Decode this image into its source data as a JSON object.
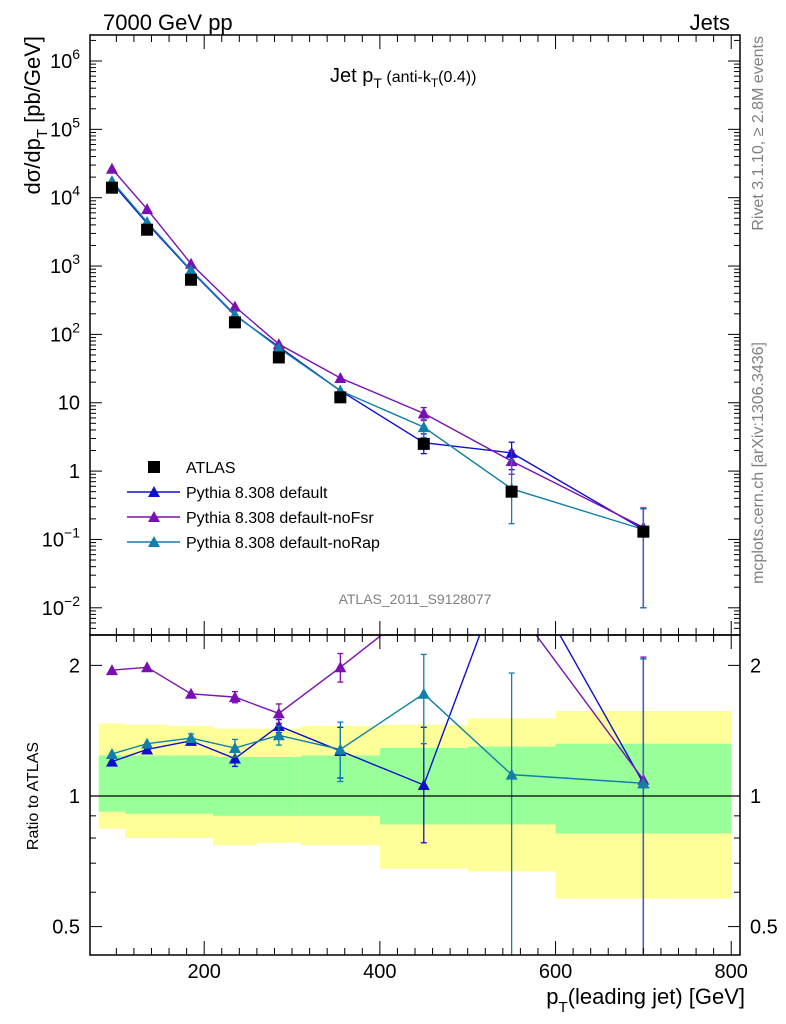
{
  "header": {
    "left": "7000 GeV pp",
    "right": "Jets"
  },
  "side": {
    "top": "Rivet 3.1.10, ≥ 2.8M events",
    "bottom": "mcplots.cern.ch [arXiv:1306.3436]"
  },
  "chart_data": [
    {
      "type": "line",
      "title_main": "Jet p",
      "title_sub": "T",
      "title_tail": " (anti-k",
      "title_sub2": "T",
      "title_end": "(0.4))",
      "watermark": "ATLAS_2011_S9128077",
      "ylabel_main": "dσ/dp",
      "ylabel_sub": "T",
      "ylabel_end": " [pb/GeV]",
      "yscale": "log",
      "xlim": [
        70,
        810
      ],
      "ylim": [
        0.004,
        2400000
      ],
      "ytick_labels": [
        {
          "v": 1000000,
          "base": "10",
          "exp": "6"
        },
        {
          "v": 100000,
          "base": "10",
          "exp": "5"
        },
        {
          "v": 10000,
          "base": "10",
          "exp": "4"
        },
        {
          "v": 1000,
          "base": "10",
          "exp": "3"
        },
        {
          "v": 100,
          "base": "10",
          "exp": "2"
        },
        {
          "v": 10,
          "base": "10",
          "exp": ""
        },
        {
          "v": 1,
          "base": "1",
          "exp": ""
        },
        {
          "v": 0.1,
          "base": "10",
          "exp": "−1"
        },
        {
          "v": 0.01,
          "base": "10",
          "exp": "−2"
        }
      ],
      "legend": [
        {
          "name": "ATLAS",
          "color": "#000000",
          "marker": "square"
        },
        {
          "name": "Pythia 8.308 default",
          "color": "#1010cc",
          "marker": "triangle"
        },
        {
          "name": "Pythia 8.308 default-noFsr",
          "color": "#7a10b4",
          "marker": "triangle"
        },
        {
          "name": "Pythia 8.308 default-noRap",
          "color": "#1080a8",
          "marker": "triangle"
        }
      ],
      "bins": [
        [
          80,
          110
        ],
        [
          110,
          160
        ],
        [
          160,
          210
        ],
        [
          210,
          260
        ],
        [
          260,
          310
        ],
        [
          310,
          400
        ],
        [
          400,
          500
        ],
        [
          500,
          600
        ],
        [
          600,
          800
        ]
      ],
      "x": [
        95,
        135,
        185,
        235,
        285,
        355,
        450,
        550,
        700
      ],
      "data": [
        14000,
        3400,
        630,
        150,
        46,
        12,
        2.5,
        0.5,
        0.13
      ],
      "series": [
        {
          "name": "Pythia 8.308 default",
          "color": "#1010cc",
          "values": [
            16500,
            4200,
            850,
            190,
            66,
            15,
            2.6,
            1.85,
            0.14
          ],
          "err_lo": [
            0,
            0,
            0,
            0,
            0,
            0,
            0.8,
            0.8,
            0.13
          ],
          "err_hi": [
            0,
            0,
            0,
            0,
            0,
            0,
            0.9,
            0.8,
            0.14
          ]
        },
        {
          "name": "Pythia 8.308 default-noFsr",
          "color": "#7a10b4",
          "values": [
            26500,
            6800,
            1080,
            255,
            72,
            23,
            7.0,
            1.4,
            0.15
          ],
          "err_lo": [
            0,
            0,
            0,
            0,
            0,
            0,
            1.5,
            0.5,
            0.14
          ],
          "err_hi": [
            0,
            0,
            0,
            0,
            0,
            0,
            1.5,
            0.6,
            0.14
          ]
        },
        {
          "name": "Pythia 8.308 default-noRap",
          "color": "#1080a8",
          "values": [
            17500,
            4400,
            870,
            195,
            63,
            15,
            4.4,
            0.55,
            0.14
          ],
          "err_lo": [
            0,
            0,
            0,
            0,
            0,
            0,
            1.3,
            0.38,
            0.13
          ],
          "err_hi": [
            0,
            0,
            0,
            0,
            0,
            0,
            1.3,
            0.9,
            0.14
          ]
        }
      ]
    },
    {
      "type": "line",
      "ylabel": "Ratio to ATLAS",
      "xlabel_main": "p",
      "xlabel_sub": "T",
      "xlabel_end": "(leading jet) [GeV]",
      "yscale": "log",
      "ylim": [
        0.43,
        2.35
      ],
      "xtick_labels": [
        "200",
        "400",
        "600",
        "800"
      ],
      "xticks": [
        200,
        400,
        600,
        800
      ],
      "ytick_labels": [
        "2",
        "1",
        "0.5"
      ],
      "yticks": [
        2,
        1,
        0.5
      ],
      "band_inner": [
        [
          0.92,
          1.24
        ],
        [
          0.91,
          1.24
        ],
        [
          0.91,
          1.24
        ],
        [
          0.9,
          1.23
        ],
        [
          0.9,
          1.23
        ],
        [
          0.9,
          1.24
        ],
        [
          0.86,
          1.29
        ],
        [
          0.86,
          1.3
        ],
        [
          0.82,
          1.32
        ]
      ],
      "band_outer": [
        [
          0.84,
          1.47
        ],
        [
          0.8,
          1.46
        ],
        [
          0.8,
          1.45
        ],
        [
          0.77,
          1.43
        ],
        [
          0.78,
          1.43
        ],
        [
          0.77,
          1.45
        ],
        [
          0.68,
          1.46
        ],
        [
          0.67,
          1.51
        ],
        [
          0.58,
          1.57
        ]
      ],
      "series": [
        {
          "name": "Pythia 8.308 default",
          "color": "#1010cc",
          "x": [
            95,
            135,
            185,
            235,
            285,
            355,
            450,
            550,
            700
          ],
          "values": [
            1.2,
            1.28,
            1.34,
            1.22,
            1.45,
            1.27,
            1.06,
            3.7,
            1.07
          ],
          "err_lo": [
            0,
            0,
            0,
            0.05,
            0.05,
            0.17,
            0.28,
            0,
            1.0
          ],
          "err_hi": [
            0,
            0,
            0,
            0.05,
            0.05,
            0.17,
            0.38,
            0,
            1.0
          ]
        },
        {
          "name": "Pythia 8.308 default-noFsr",
          "color": "#7a10b4",
          "x": [
            95,
            135,
            185,
            235,
            285,
            355,
            450,
            550,
            700
          ],
          "values": [
            1.95,
            1.98,
            1.72,
            1.69,
            1.55,
            1.98,
            2.8,
            2.8,
            1.09
          ],
          "err_lo": [
            0,
            0,
            0,
            0.05,
            0.08,
            0.15,
            0,
            0,
            1.0
          ],
          "err_hi": [
            0,
            0,
            0,
            0.05,
            0.08,
            0.15,
            0,
            0,
            1.0
          ]
        },
        {
          "name": "Pythia 8.308 default-noRap",
          "color": "#1080a8",
          "x": [
            95,
            135,
            185,
            235,
            285,
            355,
            450,
            550,
            700
          ],
          "values": [
            1.25,
            1.32,
            1.36,
            1.29,
            1.38,
            1.28,
            1.72,
            1.12,
            1.07
          ],
          "err_lo": [
            0,
            0,
            0.03,
            0.06,
            0.07,
            0.2,
            0.4,
            0.8,
            1.0
          ],
          "err_hi": [
            0,
            0,
            0.03,
            0.06,
            0.07,
            0.2,
            0.4,
            0.8,
            1.0
          ]
        }
      ]
    }
  ]
}
